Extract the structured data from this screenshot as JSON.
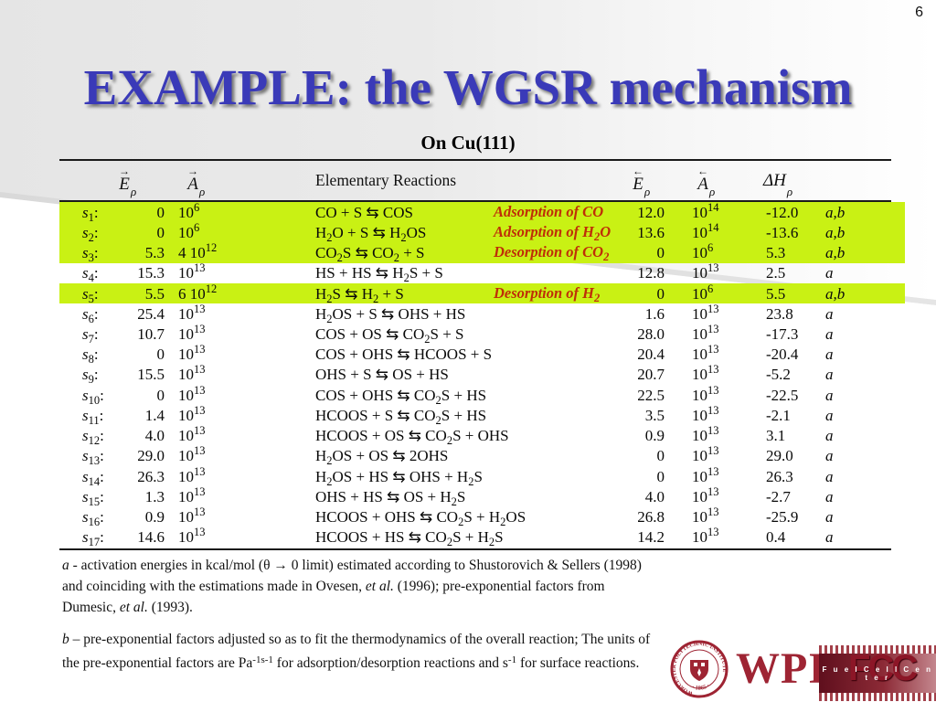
{
  "page_number": "6",
  "title": "EXAMPLE: the WGSR mechanism",
  "subtitle": "On Cu(111)",
  "colors": {
    "title_blue": "#3a3ab8",
    "highlight_green": "#c9f114",
    "annotation_red": "#bf2e08",
    "logo_maroon": "#9e2433"
  },
  "table": {
    "headers": {
      "e_fwd": {
        "arrow": "→",
        "symbol": "E",
        "sub": "ρ"
      },
      "a_fwd": {
        "arrow": "→",
        "symbol": "A",
        "sub": "ρ"
      },
      "reactions": "Elementary Reactions",
      "e_back": {
        "arrow": "←",
        "symbol": "E",
        "sub": "ρ"
      },
      "a_back": {
        "arrow": "←",
        "symbol": "A",
        "sub": "ρ"
      },
      "dh": {
        "symbol": "ΔH",
        "sub": "ρ"
      }
    },
    "rows": [
      {
        "sub": "1",
        "e_fwd": "0",
        "a_fwd": "10^6",
        "reaction": "CO + S ⇆ COS",
        "annotation": "Adsorption of CO",
        "e_back": "12.0",
        "a_back": "10^14",
        "dh": "-12.0",
        "notes": "a,b",
        "highlight": true
      },
      {
        "sub": "2",
        "e_fwd": "0",
        "a_fwd": "10^6",
        "reaction": "H_2O + S ⇆ H_2OS",
        "annotation": "Adsorption of H_2O",
        "e_back": "13.6",
        "a_back": "10^14",
        "dh": "-13.6",
        "notes": "a,b",
        "highlight": true
      },
      {
        "sub": "3",
        "e_fwd": "5.3",
        "a_fwd": "4 10^12",
        "reaction": "CO_2S ⇆ CO_2 + S",
        "annotation": "Desorption of CO_2",
        "e_back": "0",
        "a_back": "10^6",
        "dh": "5.3",
        "notes": "a,b",
        "highlight": true
      },
      {
        "sub": "4",
        "e_fwd": "15.3",
        "a_fwd": "10^13",
        "reaction": "HS + HS ⇆ H_2S + S",
        "annotation": "",
        "e_back": "12.8",
        "a_back": "10^13",
        "dh": "2.5",
        "notes": "a",
        "highlight": false
      },
      {
        "sub": "5",
        "e_fwd": "5.5",
        "a_fwd": "6 10^12",
        "reaction": "H_2S ⇆ H_2 + S",
        "annotation": "Desorption of H_2",
        "e_back": "0",
        "a_back": "10^6",
        "dh": "5.5",
        "notes": "a,b",
        "highlight": true
      },
      {
        "sub": "6",
        "e_fwd": "25.4",
        "a_fwd": "10^13",
        "reaction": "H_2OS + S ⇆ OHS + HS",
        "annotation": "",
        "e_back": "1.6",
        "a_back": "10^13",
        "dh": "23.8",
        "notes": "a",
        "highlight": false
      },
      {
        "sub": "7",
        "e_fwd": "10.7",
        "a_fwd": "10^13",
        "reaction": "COS + OS ⇆ CO_2S + S",
        "annotation": "",
        "e_back": "28.0",
        "a_back": "10^13",
        "dh": "-17.3",
        "notes": "a",
        "highlight": false
      },
      {
        "sub": "8",
        "e_fwd": "0",
        "a_fwd": "10^13",
        "reaction": "COS + OHS ⇆ HCOOS + S",
        "annotation": "",
        "e_back": "20.4",
        "a_back": "10^13",
        "dh": "-20.4",
        "notes": "a",
        "highlight": false
      },
      {
        "sub": "9",
        "e_fwd": "15.5",
        "a_fwd": "10^13",
        "reaction": "OHS + S ⇆ OS + HS",
        "annotation": "",
        "e_back": "20.7",
        "a_back": "10^13",
        "dh": "-5.2",
        "notes": "a",
        "highlight": false
      },
      {
        "sub": "10",
        "e_fwd": "0",
        "a_fwd": "10^13",
        "reaction": "COS + OHS ⇆ CO_2S + HS",
        "annotation": "",
        "e_back": "22.5",
        "a_back": "10^13",
        "dh": "-22.5",
        "notes": "a",
        "highlight": false
      },
      {
        "sub": "11",
        "e_fwd": "1.4",
        "a_fwd": "10^13",
        "reaction": "HCOOS + S ⇆ CO_2S + HS",
        "annotation": "",
        "e_back": "3.5",
        "a_back": "10^13",
        "dh": "-2.1",
        "notes": "a",
        "highlight": false
      },
      {
        "sub": "12",
        "e_fwd": "4.0",
        "a_fwd": "10^13",
        "reaction": "HCOOS + OS ⇆ CO_2S + OHS",
        "annotation": "",
        "e_back": "0.9",
        "a_back": "10^13",
        "dh": "3.1",
        "notes": "a",
        "highlight": false
      },
      {
        "sub": "13",
        "e_fwd": "29.0",
        "a_fwd": "10^13",
        "reaction": "H_2OS + OS ⇆ 2OHS",
        "annotation": "",
        "e_back": "0",
        "a_back": "10^13",
        "dh": "29.0",
        "notes": "a",
        "highlight": false
      },
      {
        "sub": "14",
        "e_fwd": "26.3",
        "a_fwd": "10^13",
        "reaction": "H_2OS + HS ⇆ OHS + H_2S",
        "annotation": "",
        "e_back": "0",
        "a_back": "10^13",
        "dh": "26.3",
        "notes": "a",
        "highlight": false
      },
      {
        "sub": "15",
        "e_fwd": "1.3",
        "a_fwd": "10^13",
        "reaction": "OHS + HS ⇆ OS + H_2S",
        "annotation": "",
        "e_back": "4.0",
        "a_back": "10^13",
        "dh": "-2.7",
        "notes": "a",
        "highlight": false
      },
      {
        "sub": "16",
        "e_fwd": "0.9",
        "a_fwd": "10^13",
        "reaction": "HCOOS + OHS ⇆ CO_2S + H_2OS",
        "annotation": "",
        "e_back": "26.8",
        "a_back": "10^13",
        "dh": "-25.9",
        "notes": "a",
        "highlight": false
      },
      {
        "sub": "17",
        "e_fwd": "14.6",
        "a_fwd": "10^13",
        "reaction": "HCOOS + HS ⇆ CO_2S + H_2S",
        "annotation": "",
        "e_back": "14.2",
        "a_back": "10^13",
        "dh": "0.4",
        "notes": "a",
        "highlight": false
      }
    ]
  },
  "footnotes": {
    "a": {
      "marker": "a",
      "text": "- activation energies in kcal/mol (θ → 0 limit) estimated according to Shustorovich & Sellers (1998) and coinciding with the estimations made in Ovesen, et al. (1996); pre-exponential factors from Dumesic, et al. (1993)."
    },
    "b": {
      "marker": "b",
      "text": "– pre-exponential factors adjusted so as to fit the thermodynamics of the overall reaction;  The units of the pre-exponential factors are Pa^-1s^-1 for adsorption/desorption reactions and s^-1 for surface reactions."
    }
  },
  "logos": {
    "wpi_text": "WPI",
    "wpi_seal_text": "WORCESTER POLYTECHNIC INSTITUTE",
    "wpi_seal_year": "· 1865 ·",
    "fcc_text": "FCC",
    "fcc_label": "F u e l   C e l l   C e n t e r"
  }
}
